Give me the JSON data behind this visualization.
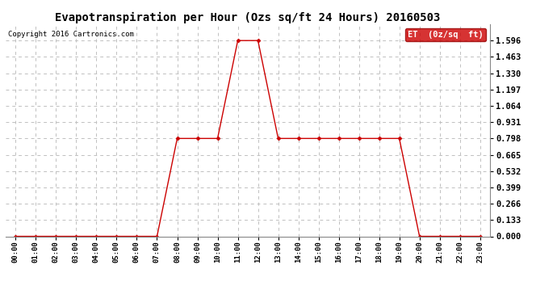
{
  "title": "Evapotranspiration per Hour (Ozs sq/ft 24 Hours) 20160503",
  "copyright": "Copyright 2016 Cartronics.com",
  "legend_label": "ET  (0z/sq  ft)",
  "legend_bg": "#cc0000",
  "legend_fg": "#ffffff",
  "hours": [
    "00:00",
    "01:00",
    "02:00",
    "03:00",
    "04:00",
    "05:00",
    "06:00",
    "07:00",
    "08:00",
    "09:00",
    "10:00",
    "11:00",
    "12:00",
    "13:00",
    "14:00",
    "15:00",
    "16:00",
    "17:00",
    "18:00",
    "19:00",
    "20:00",
    "21:00",
    "22:00",
    "23:00"
  ],
  "values": [
    0.0,
    0.0,
    0.0,
    0.0,
    0.0,
    0.0,
    0.0,
    0.0,
    0.798,
    0.798,
    0.798,
    1.596,
    1.596,
    0.798,
    0.798,
    0.798,
    0.798,
    0.798,
    0.798,
    0.798,
    0.0,
    0.0,
    0.0,
    0.0
  ],
  "line_color": "#cc0000",
  "marker": "D",
  "marker_size": 2.5,
  "ylim": [
    0.0,
    1.729
  ],
  "yticks": [
    0.0,
    0.133,
    0.266,
    0.399,
    0.532,
    0.665,
    0.798,
    0.931,
    1.064,
    1.197,
    1.33,
    1.463,
    1.596
  ],
  "grid_color": "#c0c0c0",
  "grid_style": "--",
  "bg_color": "#ffffff",
  "fig_width": 6.9,
  "fig_height": 3.75,
  "dpi": 100
}
